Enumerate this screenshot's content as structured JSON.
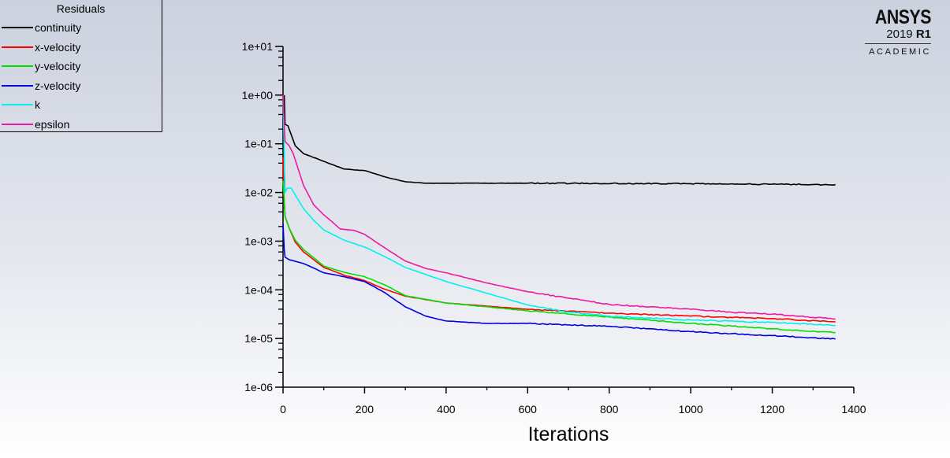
{
  "legend": {
    "title": "Residuals",
    "items": [
      {
        "label": "continuity",
        "color": "#000000"
      },
      {
        "label": "x-velocity",
        "color": "#ff0000"
      },
      {
        "label": "y-velocity",
        "color": "#00e000"
      },
      {
        "label": "z-velocity",
        "color": "#0000e0"
      },
      {
        "label": "k",
        "color": "#00f0f0"
      },
      {
        "label": "epsilon",
        "color": "#ee1aa0"
      }
    ]
  },
  "logo": {
    "brand": "ANSYS",
    "version": "2019",
    "release": "R1",
    "edition": "ACADEMIC"
  },
  "chart_data": {
    "type": "line",
    "title": "",
    "xlabel": "Iterations",
    "ylabel": "",
    "yscale": "log",
    "xlim": [
      0,
      1400
    ],
    "ylim_log10": [
      -6,
      1
    ],
    "x_ticks": [
      0,
      200,
      400,
      600,
      800,
      1000,
      1200,
      1400
    ],
    "x_tick_labels": [
      "0",
      "200",
      "400",
      "600",
      "800",
      "1000",
      "1200",
      "1400"
    ],
    "y_tick_labels": [
      "1e+01",
      "1e+00",
      "1e-01",
      "1e-02",
      "1e-03",
      "1e-04",
      "1e-05",
      "1e-06"
    ],
    "grid": false,
    "legend_position": "top-left",
    "series": [
      {
        "name": "continuity",
        "color": "#000000",
        "x": [
          3,
          5,
          12,
          30,
          50,
          100,
          150,
          200,
          250,
          300,
          350,
          400,
          600,
          1000,
          1355
        ],
        "y_log10": [
          0,
          -0.6,
          -0.63,
          -1.04,
          -1.2,
          -1.36,
          -1.52,
          -1.55,
          -1.68,
          -1.78,
          -1.81,
          -1.81,
          -1.81,
          -1.82,
          -1.84
        ]
      },
      {
        "name": "x-velocity",
        "color": "#ff0000",
        "x": [
          0,
          2,
          5,
          15,
          30,
          50,
          100,
          150,
          200,
          250,
          300,
          400,
          600,
          800,
          1000,
          1200,
          1355
        ],
        "y_log10": [
          -1.28,
          -2.0,
          -2.49,
          -2.73,
          -3.02,
          -3.22,
          -3.54,
          -3.7,
          -3.81,
          -3.99,
          -4.13,
          -4.27,
          -4.4,
          -4.48,
          -4.54,
          -4.59,
          -4.66
        ]
      },
      {
        "name": "y-velocity",
        "color": "#00e000",
        "x": [
          0,
          2,
          5,
          15,
          30,
          50,
          100,
          150,
          200,
          250,
          300,
          400,
          600,
          800,
          1000,
          1200,
          1355
        ],
        "y_log10": [
          -1.76,
          -2.0,
          -2.49,
          -2.73,
          -2.98,
          -3.17,
          -3.51,
          -3.64,
          -3.73,
          -3.9,
          -4.12,
          -4.27,
          -4.43,
          -4.56,
          -4.69,
          -4.8,
          -4.88
        ]
      },
      {
        "name": "z-velocity",
        "color": "#0000e0",
        "x": [
          0,
          3,
          5,
          15,
          50,
          100,
          150,
          200,
          250,
          300,
          350,
          400,
          500,
          600,
          800,
          1000,
          1200,
          1355
        ],
        "y_log10": [
          -2.65,
          -3.17,
          -3.33,
          -3.38,
          -3.46,
          -3.65,
          -3.73,
          -3.83,
          -4.06,
          -4.35,
          -4.54,
          -4.64,
          -4.69,
          -4.69,
          -4.75,
          -4.86,
          -4.94,
          -5.01
        ]
      },
      {
        "name": "k",
        "color": "#00f0f0",
        "x": [
          0,
          3,
          5,
          10,
          20,
          35,
          50,
          75,
          100,
          150,
          200,
          250,
          300,
          400,
          500,
          600,
          700,
          800,
          1000,
          1200,
          1355
        ],
        "y_log10": [
          0,
          -1.1,
          -2.0,
          -1.91,
          -1.91,
          -2.12,
          -2.33,
          -2.57,
          -2.77,
          -2.98,
          -3.12,
          -3.32,
          -3.54,
          -3.83,
          -4.07,
          -4.31,
          -4.46,
          -4.54,
          -4.62,
          -4.67,
          -4.73
        ]
      },
      {
        "name": "epsilon",
        "color": "#ee1aa0",
        "x": [
          0,
          5,
          15,
          25,
          50,
          75,
          100,
          120,
          140,
          175,
          200,
          250,
          300,
          350,
          400,
          500,
          600,
          700,
          800,
          900,
          1000,
          1100,
          1200,
          1355
        ],
        "y_log10": [
          0,
          -0.95,
          -1.04,
          -1.2,
          -1.85,
          -2.25,
          -2.46,
          -2.6,
          -2.75,
          -2.78,
          -2.86,
          -3.14,
          -3.41,
          -3.56,
          -3.65,
          -3.86,
          -4.04,
          -4.17,
          -4.3,
          -4.35,
          -4.4,
          -4.46,
          -4.5,
          -4.6
        ]
      }
    ]
  }
}
